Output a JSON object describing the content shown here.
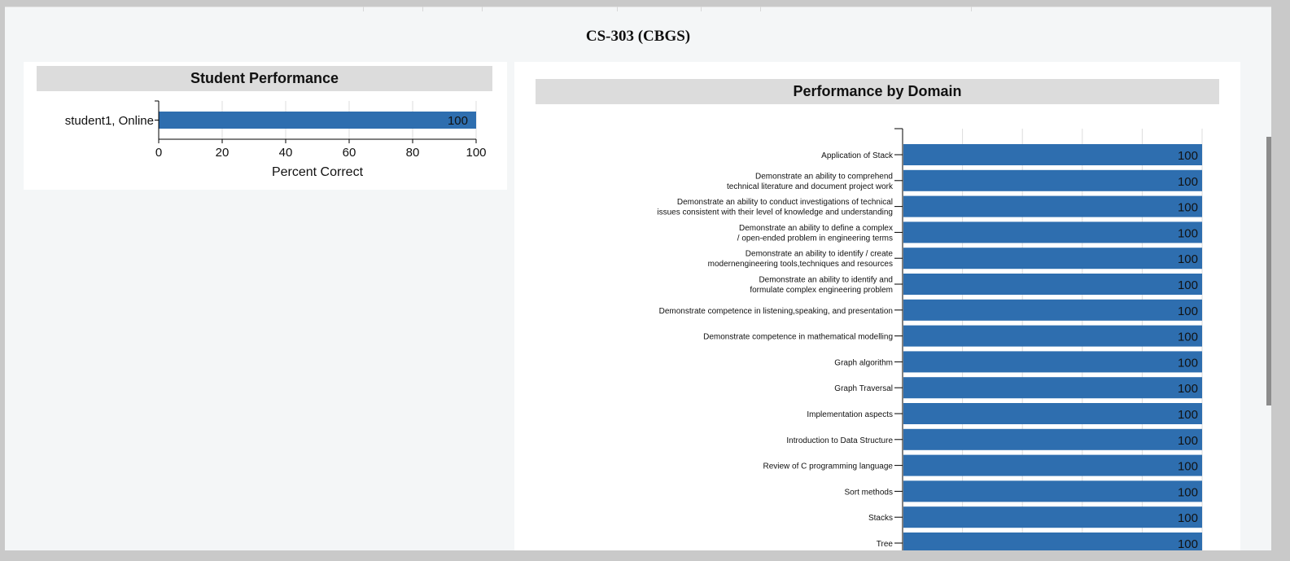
{
  "page": {
    "title": "CS-303 (CBGS)"
  },
  "colors": {
    "bar": "#2e6eaf",
    "grid": "#dddddd",
    "header_bg": "#dcdcdc"
  },
  "chart_data": [
    {
      "type": "bar",
      "orientation": "horizontal",
      "title": "Student Performance",
      "xlabel": "Percent Correct",
      "ylabel": "",
      "xlim": [
        0,
        100
      ],
      "xticks": [
        0,
        20,
        40,
        60,
        80,
        100
      ],
      "grid": true,
      "categories": [
        "student1, Online"
      ],
      "values": [
        100
      ],
      "data_labels": [
        "100"
      ]
    },
    {
      "type": "bar",
      "orientation": "horizontal",
      "title": "Performance by Domain",
      "xlabel": "",
      "ylabel": "",
      "xlim": [
        0,
        100
      ],
      "grid": true,
      "categories": [
        [
          "Application of Stack"
        ],
        [
          "Demonstrate an ability to comprehend",
          "technical literature and document project work"
        ],
        [
          "Demonstrate an ability to conduct investigations of technical",
          "issues consistent with their level of knowledge and understanding"
        ],
        [
          "Demonstrate an ability to define a complex",
          "/ open-ended problem in engineering terms"
        ],
        [
          "Demonstrate an ability to identify / create",
          "modernengineering tools,techniques and resources"
        ],
        [
          "Demonstrate an ability to identify and",
          "formulate complex engineering problem"
        ],
        [
          "Demonstrate competence in listening,speaking, and presentation"
        ],
        [
          "Demonstrate competence in mathematical modelling"
        ],
        [
          "Graph algorithm"
        ],
        [
          "Graph Traversal"
        ],
        [
          "Implementation aspects"
        ],
        [
          "Introduction to Data Structure"
        ],
        [
          "Review of C programming language"
        ],
        [
          "Sort methods"
        ],
        [
          "Stacks"
        ],
        [
          "Tree"
        ]
      ],
      "values": [
        100,
        100,
        100,
        100,
        100,
        100,
        100,
        100,
        100,
        100,
        100,
        100,
        100,
        100,
        100,
        100
      ],
      "data_labels": [
        "100",
        "100",
        "100",
        "100",
        "100",
        "100",
        "100",
        "100",
        "100",
        "100",
        "100",
        "100",
        "100",
        "100",
        "100",
        "100"
      ]
    }
  ]
}
